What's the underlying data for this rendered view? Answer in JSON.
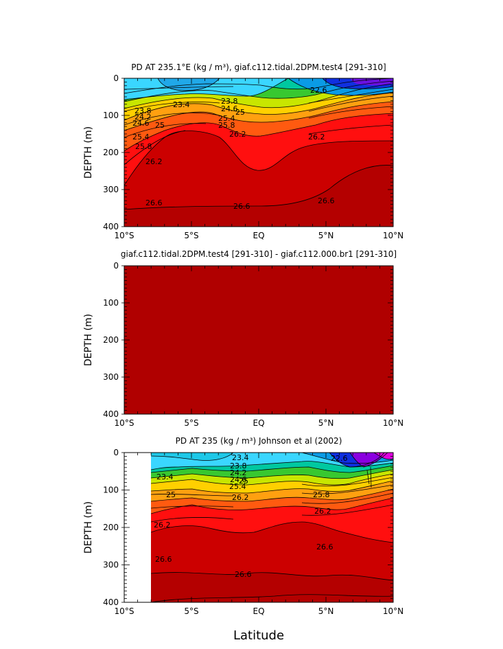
{
  "chart_data": [
    {
      "type": "heatmap",
      "title": "PD AT 235.1°E (kg / m³), giaf.c112.tidal.2DPM.test4 [291-310]",
      "ylabel": "DEPTH (m)",
      "xlabel": "",
      "xlim": [
        -10,
        10
      ],
      "ylim": [
        400,
        0
      ],
      "x_ticks": [
        "10°S",
        "5°S",
        "EQ",
        "5°N",
        "10°N"
      ],
      "y_ticks": [
        "0",
        "100",
        "200",
        "300",
        "400"
      ],
      "data_start_lat": -10,
      "contour_labels": [
        "22.6",
        "23.4",
        "23.8",
        "23.8",
        "24.2",
        "24.6",
        "24.6",
        "25",
        "25",
        "25.4",
        "25.4",
        "25.8",
        "25.8",
        "26.2",
        "26.2",
        "26.2",
        "26.6",
        "26.6",
        "26.6"
      ]
    },
    {
      "type": "heatmap",
      "title": "giaf.c112.tidal.2DPM.test4 [291-310] - giaf.c112.000.br1 [291-310]",
      "ylabel": "DEPTH (m)",
      "xlabel": "",
      "xlim": [
        -10,
        10
      ],
      "ylim": [
        400,
        0
      ],
      "x_ticks": [
        "10°S",
        "5°S",
        "EQ",
        "5°N",
        "10°N"
      ],
      "y_ticks": [
        "0",
        "100",
        "200",
        "300",
        "400"
      ],
      "uniform_fill": "#b00000",
      "contour_labels": []
    },
    {
      "type": "heatmap",
      "title": "PD AT 235 (kg / m³) Johnson et al (2002)",
      "ylabel": "DEPTH (m)",
      "xlabel": "Latitude",
      "xlim": [
        -10,
        10
      ],
      "ylim": [
        400,
        0
      ],
      "x_ticks": [
        "10°S",
        "5°S",
        "EQ",
        "5°N",
        "10°N"
      ],
      "y_ticks": [
        "0",
        "100",
        "200",
        "300",
        "400"
      ],
      "data_start_lat": -8,
      "contour_labels": [
        "22.6",
        "23.4",
        "23.4",
        "23.8",
        "24.2",
        "24.6",
        "25",
        "25",
        "25.4",
        "25.8",
        "26.2",
        "26.2",
        "26.2",
        "26.6",
        "26.6",
        "26.6"
      ]
    }
  ]
}
